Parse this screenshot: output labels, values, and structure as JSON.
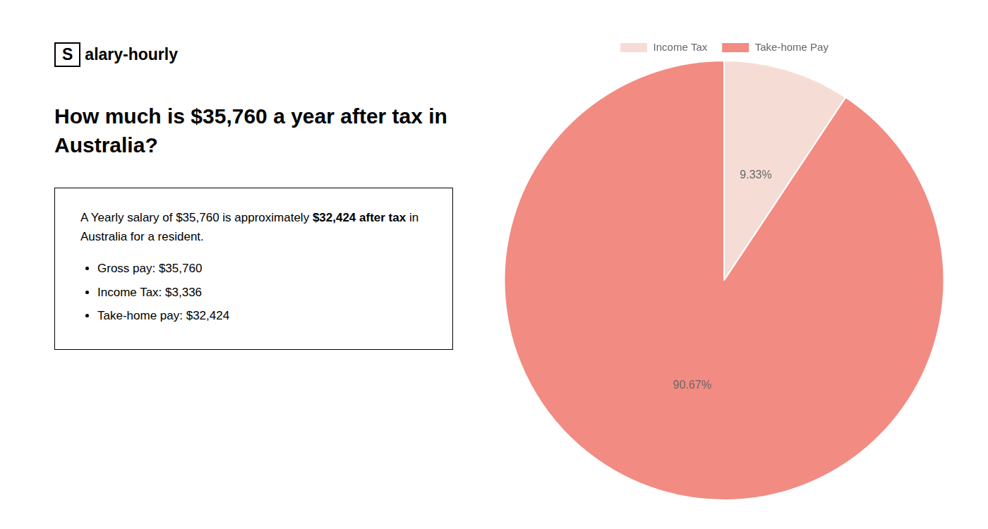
{
  "chart_data": {
    "type": "pie",
    "title": "How much is $35,760 a year after tax in\nAustralia?",
    "annotations": [
      "S",
      "alary-hourly",
      "A Yearly salary of $35,760 is approximately ",
      "$32,424 after tax",
      " in",
      "Australia for a resident.",
      "Gross pay: $35,760",
      "Income Tax: $3,336",
      "Take-home pay: $32,424"
    ],
    "categories": [
      "Income Tax",
      "Take-home Pay"
    ],
    "values": [
      9.33,
      90.67
    ],
    "value_labels": [
      "9.33%",
      "90.67%"
    ],
    "colors": [
      "#f5ddd5",
      "#f28b82"
    ],
    "legend": "top",
    "data_labels": true
  }
}
